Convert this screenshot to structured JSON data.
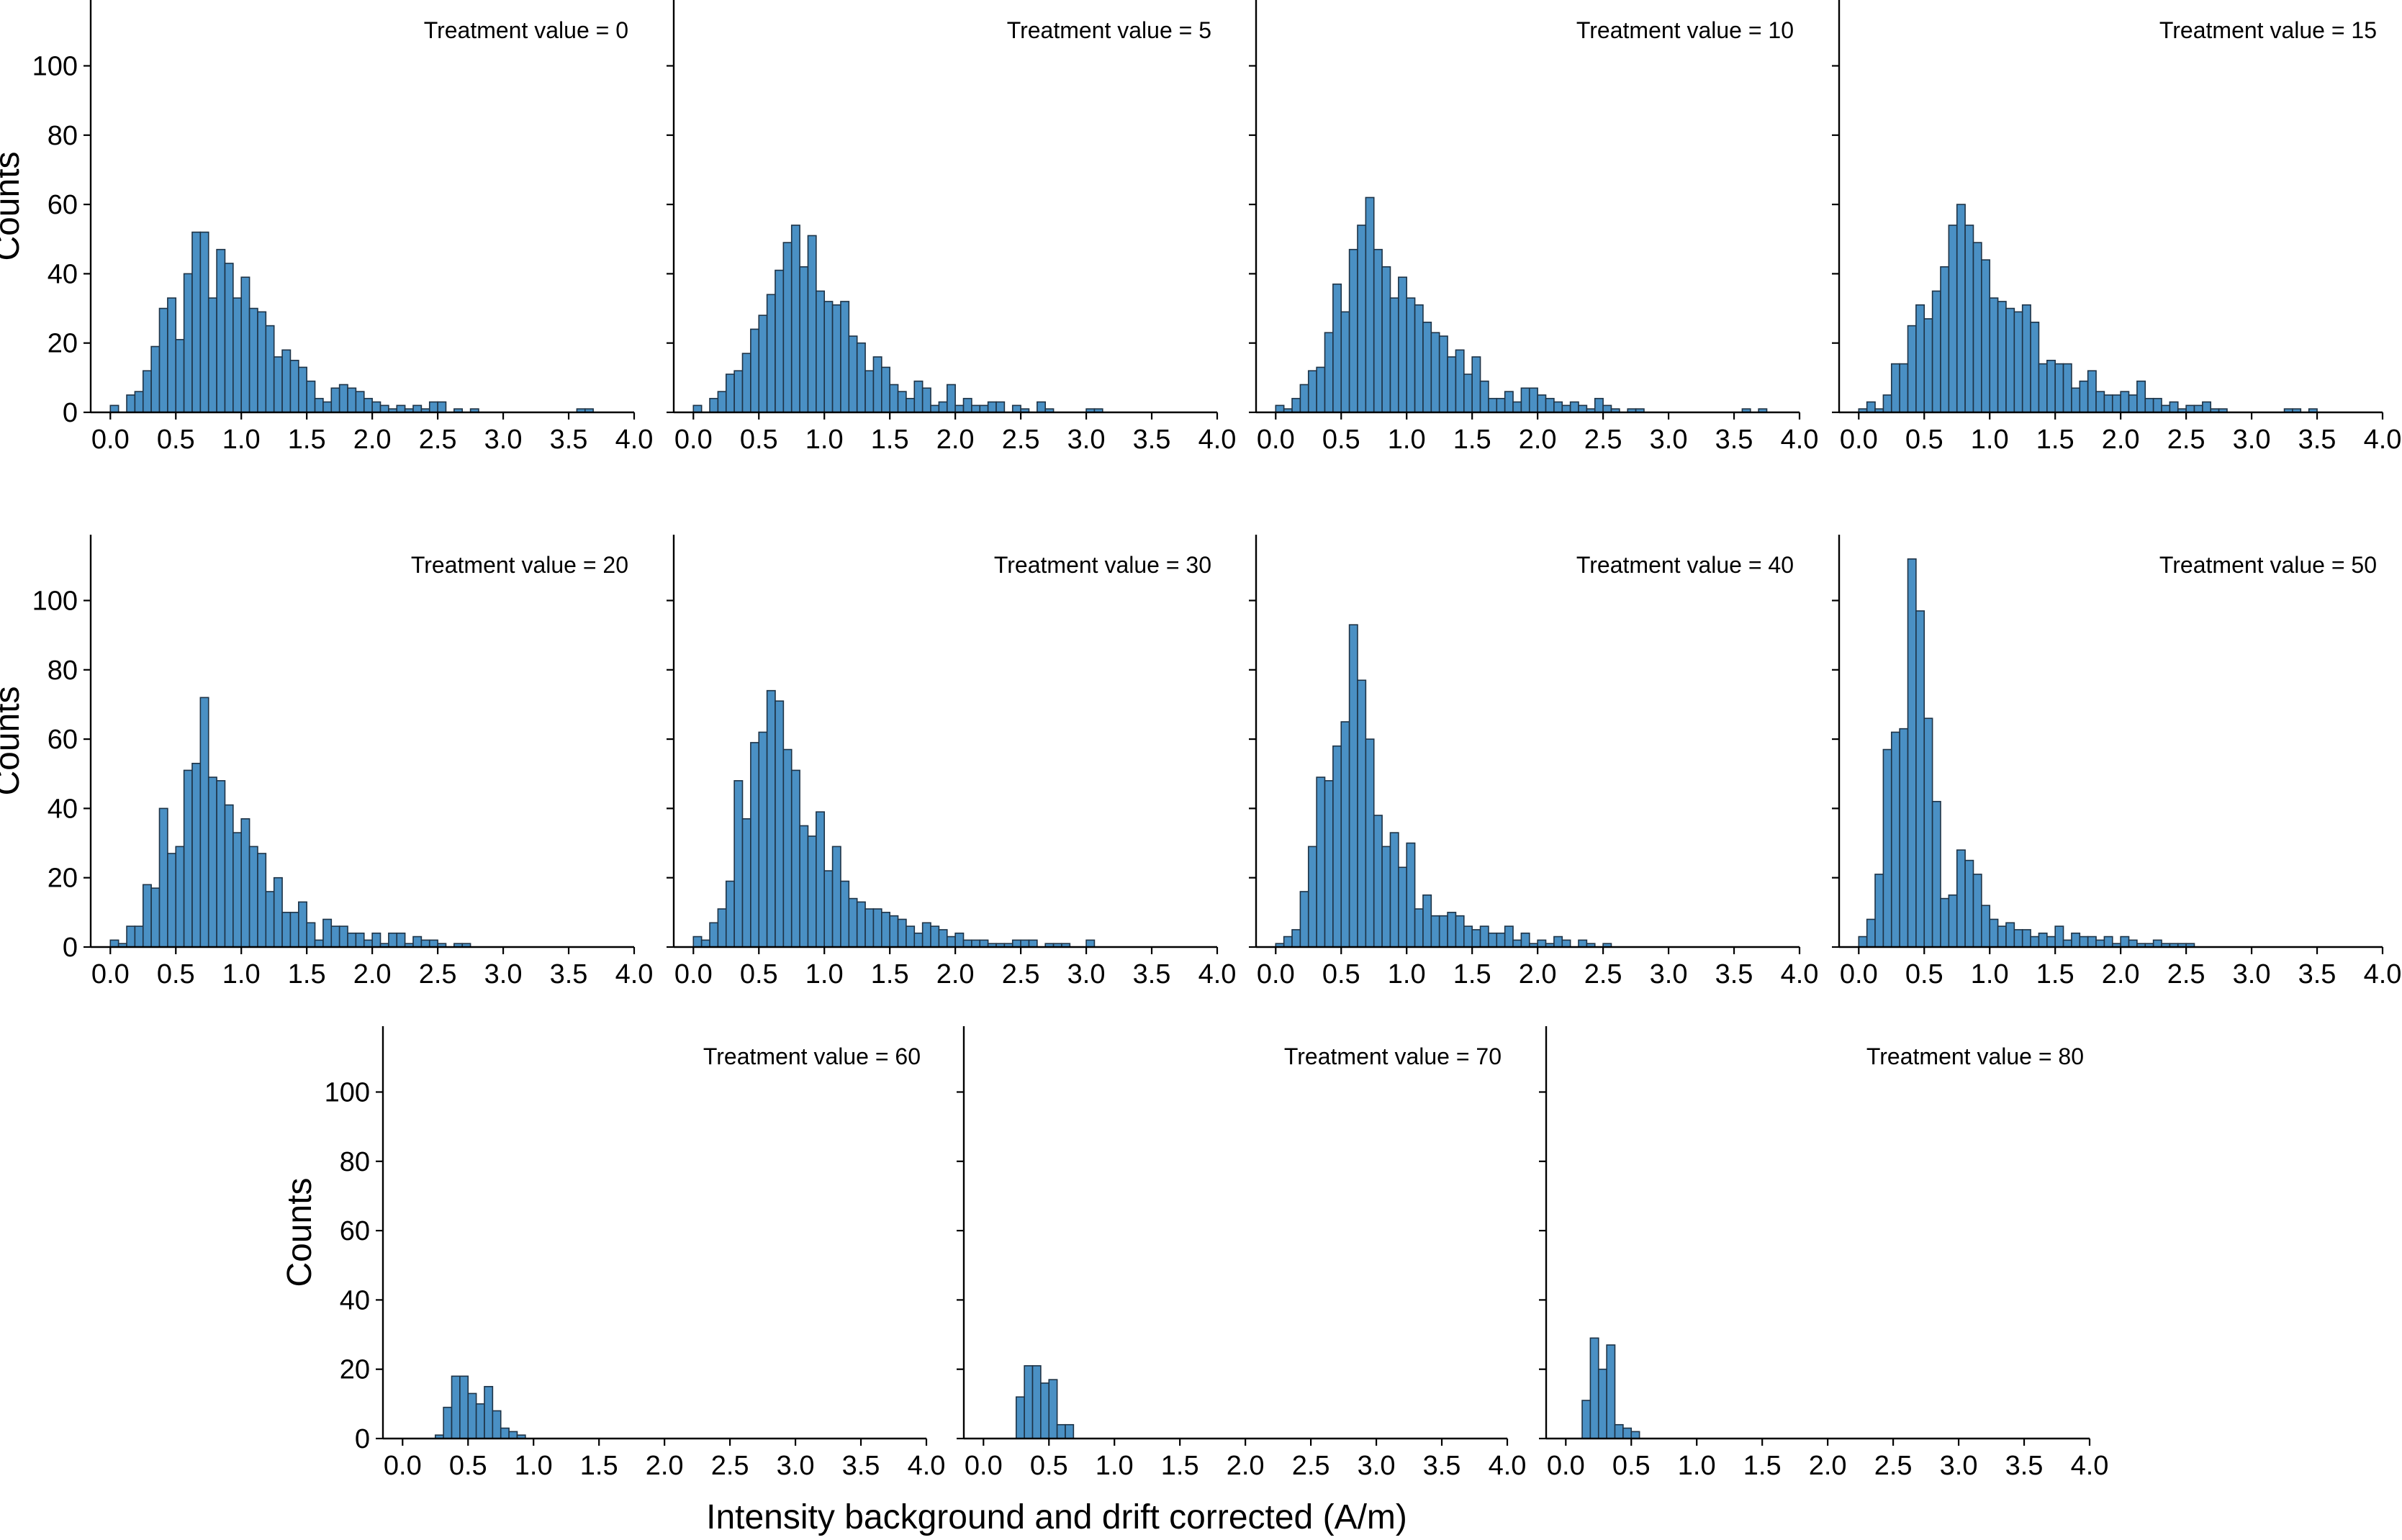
{
  "chart_data": {
    "type": "bar",
    "subtype": "histogram-facet-grid",
    "xlabel": "Intensity background and drift corrected (A/m)",
    "ylabel": "Counts",
    "xlim": [
      -0.15,
      4.0
    ],
    "ylim": [
      0,
      119
    ],
    "bin_width": 0.0625,
    "bin_start": 0.0,
    "x_ticks": [
      "0.0",
      "0.5",
      "1.0",
      "1.5",
      "2.0",
      "2.5",
      "3.0",
      "3.5",
      "4.0"
    ],
    "y_ticks": [
      "0",
      "20",
      "40",
      "60",
      "80",
      "100"
    ],
    "panels": [
      {
        "title": "Treatment value = 0",
        "values": [
          2,
          0,
          5,
          6,
          12,
          19,
          30,
          33,
          21,
          40,
          52,
          52,
          33,
          47,
          43,
          33,
          39,
          30,
          29,
          25,
          16,
          18,
          15,
          13,
          9,
          4,
          3,
          7,
          8,
          7,
          6,
          4,
          3,
          2,
          1,
          2,
          1,
          2,
          1,
          3,
          3,
          0,
          1,
          0,
          1,
          0,
          0,
          0,
          0,
          0,
          0,
          0,
          0,
          0,
          0,
          0,
          0,
          1,
          1,
          0,
          0,
          0,
          0,
          0
        ]
      },
      {
        "title": "Treatment value = 5",
        "values": [
          2,
          0,
          4,
          6,
          11,
          12,
          17,
          24,
          28,
          34,
          41,
          49,
          54,
          42,
          51,
          35,
          32,
          31,
          32,
          22,
          20,
          12,
          16,
          13,
          8,
          6,
          4,
          9,
          7,
          2,
          3,
          8,
          2,
          4,
          2,
          2,
          3,
          3,
          0,
          2,
          1,
          0,
          3,
          1,
          0,
          0,
          0,
          0,
          1,
          1,
          0,
          0,
          0,
          0,
          0,
          0,
          0,
          0,
          0,
          0,
          0,
          0,
          0,
          0
        ]
      },
      {
        "title": "Treatment value = 10",
        "values": [
          2,
          1,
          4,
          8,
          12,
          13,
          23,
          37,
          29,
          47,
          54,
          62,
          47,
          42,
          33,
          39,
          33,
          31,
          26,
          23,
          22,
          16,
          18,
          11,
          16,
          9,
          4,
          4,
          6,
          3,
          7,
          7,
          5,
          4,
          3,
          2,
          3,
          2,
          1,
          4,
          2,
          1,
          0,
          1,
          1,
          0,
          0,
          0,
          0,
          0,
          0,
          0,
          0,
          0,
          0,
          0,
          0,
          1,
          0,
          1,
          0,
          0,
          0,
          0
        ]
      },
      {
        "title": "Treatment value = 15",
        "values": [
          1,
          3,
          1,
          5,
          14,
          14,
          25,
          31,
          27,
          35,
          42,
          54,
          60,
          54,
          49,
          44,
          33,
          32,
          30,
          29,
          31,
          26,
          14,
          15,
          14,
          14,
          7,
          9,
          12,
          6,
          5,
          5,
          6,
          5,
          9,
          4,
          4,
          2,
          3,
          1,
          2,
          2,
          3,
          1,
          1,
          0,
          0,
          0,
          0,
          0,
          0,
          0,
          1,
          1,
          0,
          1,
          0,
          0,
          0,
          0,
          0,
          0,
          0,
          0
        ]
      },
      {
        "title": "Treatment value = 20",
        "values": [
          2,
          1,
          6,
          6,
          18,
          17,
          40,
          27,
          29,
          51,
          53,
          72,
          49,
          48,
          41,
          33,
          37,
          29,
          27,
          16,
          20,
          10,
          10,
          13,
          7,
          2,
          8,
          6,
          6,
          4,
          4,
          2,
          4,
          1,
          4,
          4,
          1,
          3,
          2,
          2,
          1,
          0,
          1,
          1,
          0,
          0,
          0,
          0,
          0,
          0,
          0,
          0,
          0,
          0,
          0,
          0,
          0,
          0,
          0,
          0,
          0,
          0,
          0,
          0
        ]
      },
      {
        "title": "Treatment value = 30",
        "values": [
          3,
          2,
          7,
          11,
          19,
          48,
          37,
          59,
          62,
          74,
          71,
          57,
          51,
          35,
          32,
          39,
          22,
          29,
          19,
          14,
          13,
          11,
          11,
          10,
          9,
          8,
          6,
          4,
          7,
          6,
          5,
          3,
          4,
          2,
          2,
          2,
          1,
          1,
          1,
          2,
          2,
          2,
          0,
          1,
          1,
          1,
          0,
          0,
          2,
          0,
          0,
          0,
          0,
          0,
          0,
          0,
          0,
          0,
          0,
          0,
          0,
          0,
          0,
          0
        ]
      },
      {
        "title": "Treatment value = 40",
        "values": [
          1,
          3,
          5,
          16,
          29,
          49,
          48,
          58,
          65,
          93,
          77,
          60,
          38,
          29,
          33,
          23,
          30,
          11,
          15,
          9,
          9,
          10,
          9,
          6,
          5,
          6,
          4,
          4,
          6,
          2,
          4,
          1,
          2,
          1,
          3,
          2,
          0,
          2,
          1,
          0,
          1,
          0,
          0,
          0,
          0,
          0,
          0,
          0,
          0,
          0,
          0,
          0,
          0,
          0,
          0,
          0,
          0,
          0,
          0,
          0,
          0,
          0,
          0,
          0
        ]
      },
      {
        "title": "Treatment value = 50",
        "values": [
          3,
          8,
          21,
          57,
          62,
          63,
          112,
          97,
          66,
          42,
          14,
          15,
          28,
          25,
          21,
          12,
          8,
          6,
          7,
          5,
          5,
          3,
          4,
          3,
          6,
          2,
          4,
          3,
          3,
          2,
          3,
          1,
          3,
          2,
          1,
          1,
          2,
          1,
          1,
          1,
          1,
          0,
          0,
          0,
          0,
          0,
          0,
          0,
          0,
          0,
          0,
          0,
          0,
          0,
          0,
          0,
          0,
          0,
          0,
          0,
          0,
          0,
          0,
          0
        ]
      },
      {
        "title": "Treatment value = 60",
        "values": [
          0,
          0,
          0,
          0,
          1,
          9,
          18,
          18,
          13,
          10,
          15,
          8,
          3,
          2,
          1,
          0,
          0,
          0,
          0,
          0,
          0,
          0,
          0,
          0,
          0,
          0,
          0,
          0,
          0,
          0,
          0,
          0,
          0,
          0,
          0,
          0,
          0,
          0,
          0,
          0,
          0,
          0,
          0,
          0,
          0,
          0,
          0,
          0,
          0,
          0,
          0,
          0,
          0,
          0,
          0,
          0,
          0,
          0,
          0,
          0,
          0,
          0,
          0,
          0
        ]
      },
      {
        "title": "Treatment value = 70",
        "values": [
          0,
          0,
          0,
          0,
          12,
          21,
          21,
          16,
          17,
          4,
          4,
          0,
          0,
          0,
          0,
          0,
          0,
          0,
          0,
          0,
          0,
          0,
          0,
          0,
          0,
          0,
          0,
          0,
          0,
          0,
          0,
          0,
          0,
          0,
          0,
          0,
          0,
          0,
          0,
          0,
          0,
          0,
          0,
          0,
          0,
          0,
          0,
          0,
          0,
          0,
          0,
          0,
          0,
          0,
          0,
          0,
          0,
          0,
          0,
          0,
          0,
          0,
          0,
          0
        ]
      },
      {
        "title": "Treatment value = 80",
        "values": [
          0,
          0,
          11,
          29,
          20,
          27,
          4,
          3,
          2,
          0,
          0,
          0,
          0,
          0,
          0,
          0,
          0,
          0,
          0,
          0,
          0,
          0,
          0,
          0,
          0,
          0,
          0,
          0,
          0,
          0,
          0,
          0,
          0,
          0,
          0,
          0,
          0,
          0,
          0,
          0,
          0,
          0,
          0,
          0,
          0,
          0,
          0,
          0,
          0,
          0,
          0,
          0,
          0,
          0,
          0,
          0,
          0,
          0,
          0,
          0,
          0,
          0,
          0,
          0
        ]
      }
    ]
  }
}
